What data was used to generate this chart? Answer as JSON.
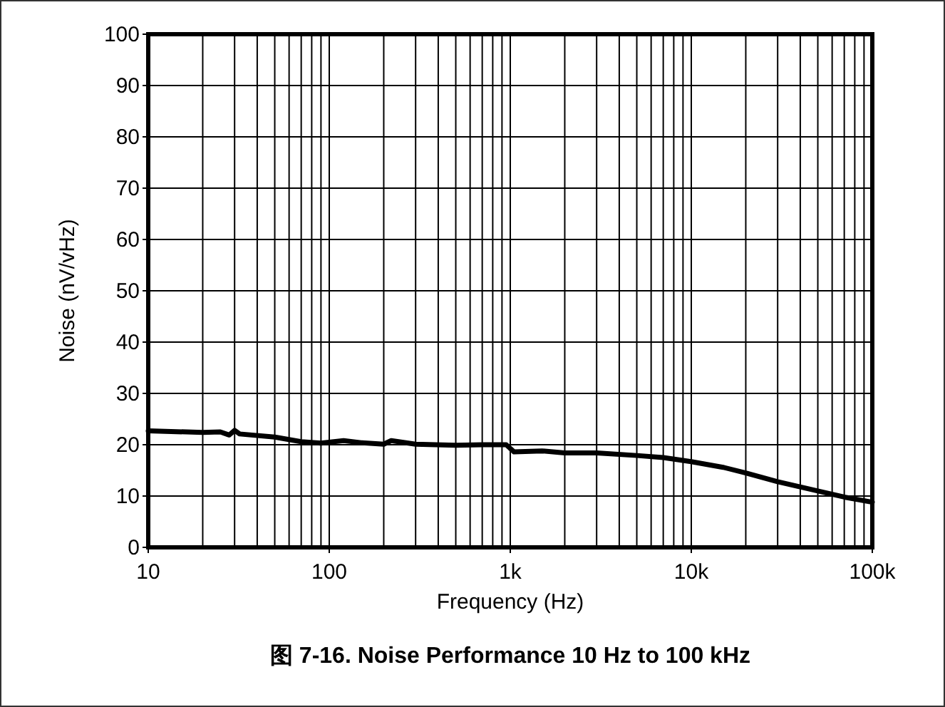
{
  "chart_data": {
    "type": "line",
    "title": "图 7-16. Noise Performance 10 Hz to 100 kHz",
    "xlabel": "Frequency (Hz)",
    "ylabel": "Noise (nV/vHz)",
    "log": "x",
    "grid": true,
    "marker": "none",
    "line_style": "solid",
    "xlim": [
      10,
      100000
    ],
    "ylim": [
      0,
      100
    ],
    "xticks": [
      10,
      100,
      {
        "value": 1000,
        "label": "1k"
      },
      {
        "value": 10000,
        "label": "10k"
      },
      {
        "value": 100000,
        "label": "100k"
      }
    ],
    "yticks": [
      0,
      10,
      20,
      30,
      40,
      50,
      60,
      70,
      80,
      90,
      100
    ],
    "series": [
      {
        "color": "#000000",
        "x": [
          10,
          20,
          25,
          28,
          30,
          32,
          50,
          70,
          90,
          120,
          150,
          200,
          220,
          300,
          500,
          700,
          950,
          1050,
          1500,
          2000,
          3000,
          5000,
          7000,
          10000,
          15000,
          20000,
          30000,
          50000,
          70000,
          100000
        ],
        "values": [
          22.7,
          22.4,
          22.5,
          21.9,
          22.8,
          22.1,
          21.5,
          20.6,
          20.3,
          20.8,
          20.4,
          20.1,
          20.8,
          20.1,
          19.9,
          20.0,
          20.0,
          18.6,
          18.8,
          18.4,
          18.4,
          17.9,
          17.5,
          16.7,
          15.6,
          14.5,
          12.8,
          11.0,
          9.8,
          8.8
        ]
      }
    ]
  }
}
